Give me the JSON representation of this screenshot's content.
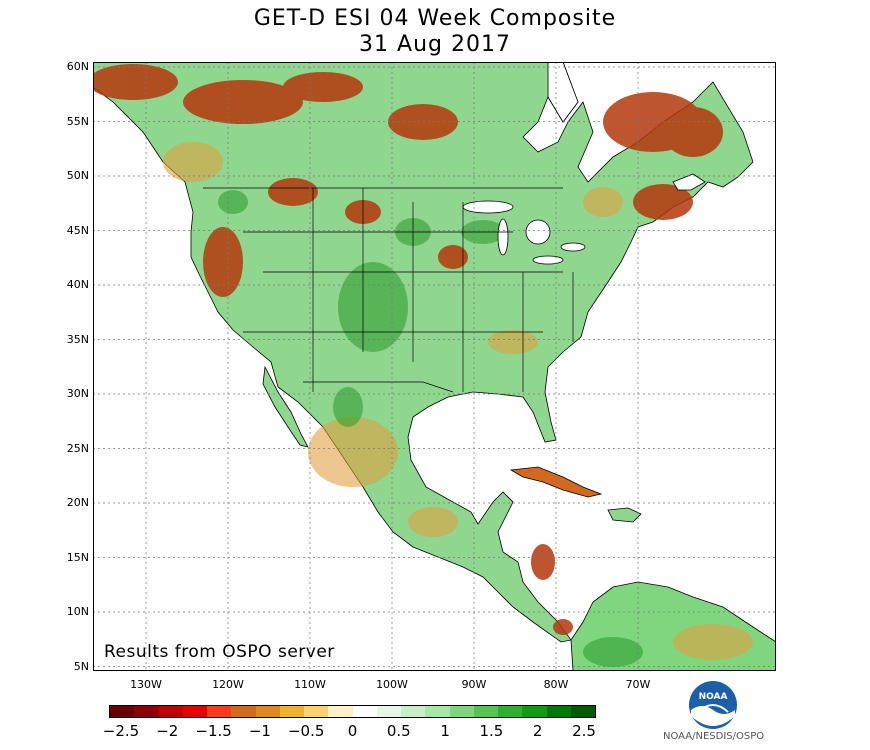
{
  "header": {
    "title": "GET-D ESI 04 Week Composite",
    "date": "31 Aug 2017"
  },
  "map": {
    "note": "Results from OSPO server",
    "lat_labels": [
      "60N",
      "55N",
      "50N",
      "45N",
      "40N",
      "35N",
      "30N",
      "25N",
      "20N",
      "15N",
      "10N",
      "5N"
    ],
    "lon_labels": [
      "130W",
      "120W",
      "110W",
      "100W",
      "90W",
      "80W",
      "70W"
    ],
    "land_color": "#8fd68f",
    "water_color": "#ffffff"
  },
  "legend": {
    "tick_labels": [
      "−2.5",
      "−2",
      "−1.5",
      "−1",
      "−0.5",
      "0",
      "0.5",
      "1",
      "1.5",
      "2",
      "2.5"
    ],
    "colors": [
      "#6b0000",
      "#8b0000",
      "#c00000",
      "#e60000",
      "#ff3a1a",
      "#d2691e",
      "#e08a1e",
      "#f0b030",
      "#ffd070",
      "#fff0c8",
      "#ffffff",
      "#e6f7e6",
      "#c8f0c8",
      "#a6e6a6",
      "#7fd67f",
      "#55c455",
      "#30b030",
      "#139a13",
      "#007a00",
      "#005a00"
    ]
  },
  "logo": {
    "text": "NOAA",
    "credit": "NOAA/NESDIS/OSPO",
    "color": "#1b5fa8"
  }
}
